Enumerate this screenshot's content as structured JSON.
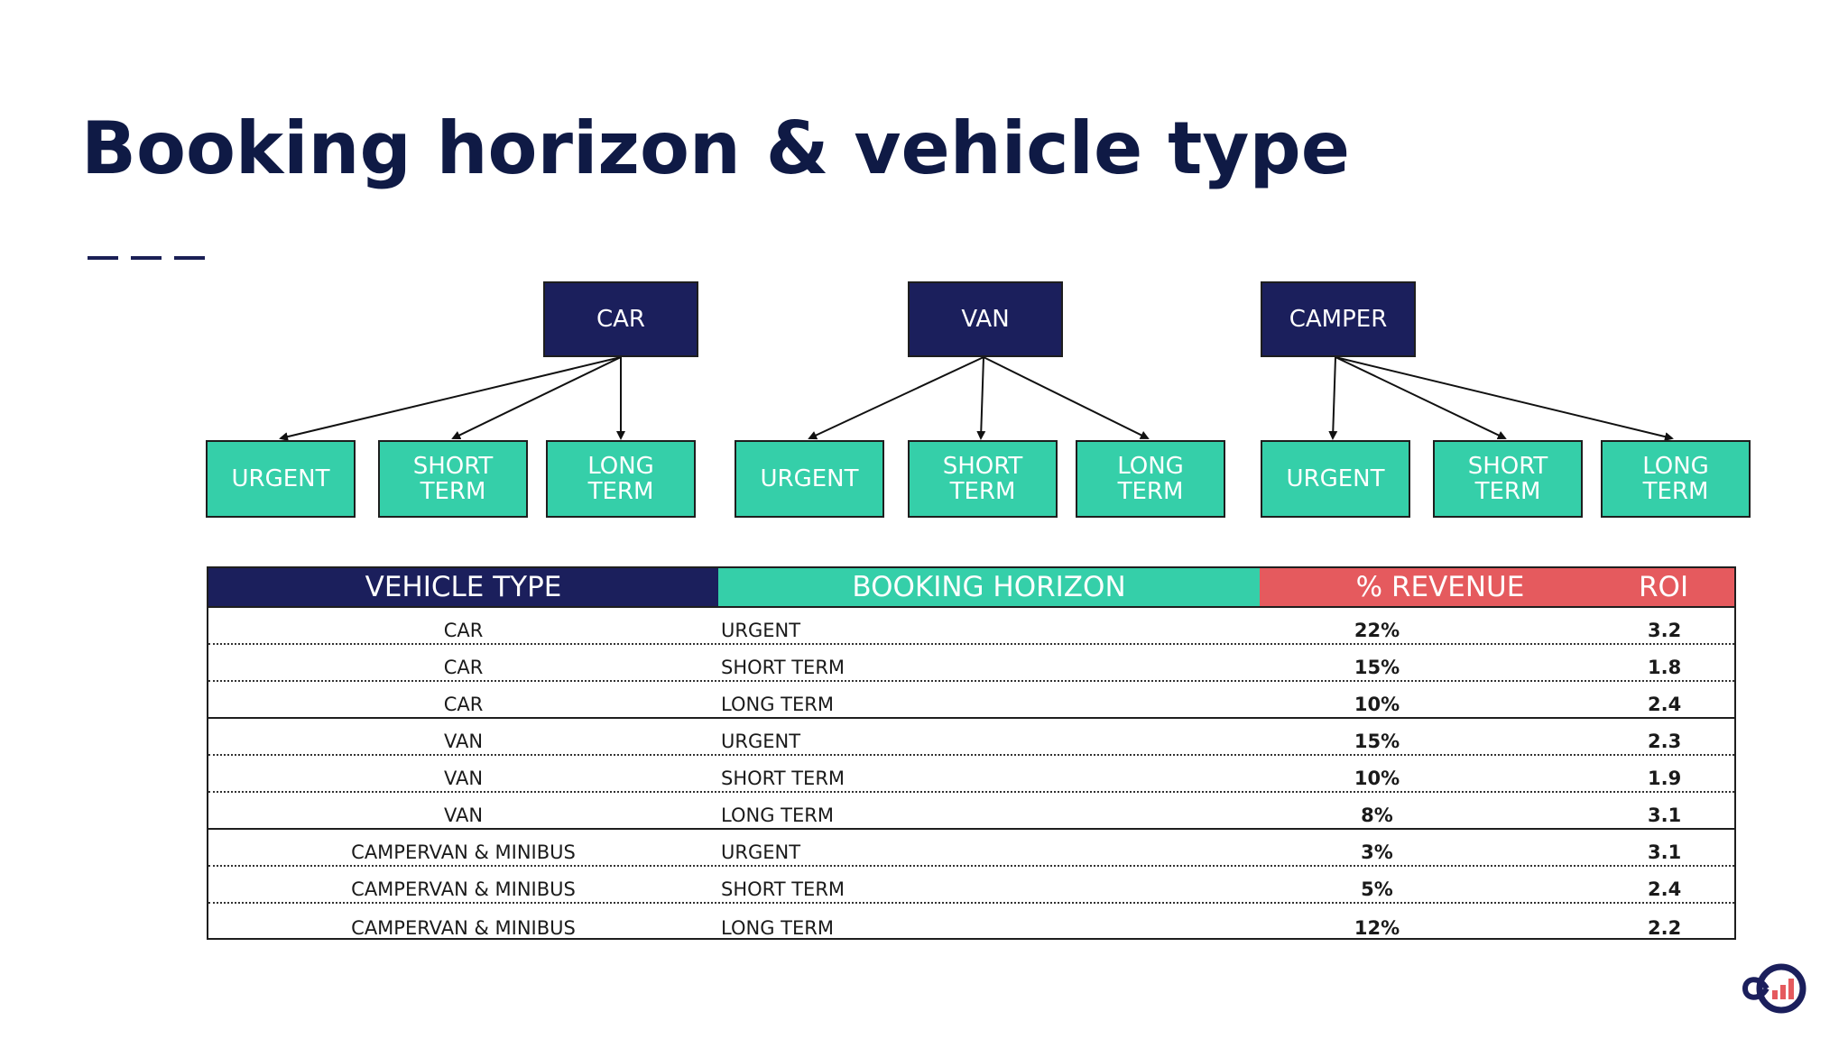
{
  "title": "Booking horizon & vehicle type",
  "tree": {
    "groups": [
      {
        "label": "CAR",
        "children": [
          "URGENT",
          "SHORT\nTERM",
          "LONG\nTERM"
        ]
      },
      {
        "label": "VAN",
        "children": [
          "URGENT",
          "SHORT\nTERM",
          "LONG\nTERM"
        ]
      },
      {
        "label": "CAMPER",
        "children": [
          "URGENT",
          "SHORT\nTERM",
          "LONG\nTERM"
        ]
      }
    ]
  },
  "table": {
    "headers": {
      "vehicle_type": "VEHICLE TYPE",
      "booking_horizon": "BOOKING HORIZON",
      "revenue": "% REVENUE",
      "roi": "ROI"
    },
    "rows": [
      {
        "vehicle": "CAR",
        "horizon": "URGENT",
        "revenue": "22%",
        "roi": "3.2"
      },
      {
        "vehicle": "CAR",
        "horizon": "SHORT TERM",
        "revenue": "15%",
        "roi": "1.8"
      },
      {
        "vehicle": "CAR",
        "horizon": "LONG TERM",
        "revenue": "10%",
        "roi": "2.4"
      },
      {
        "vehicle": "VAN",
        "horizon": "URGENT",
        "revenue": "15%",
        "roi": "2.3"
      },
      {
        "vehicle": "VAN",
        "horizon": "SHORT TERM",
        "revenue": "10%",
        "roi": "1.9"
      },
      {
        "vehicle": "VAN",
        "horizon": "LONG TERM",
        "revenue": "8%",
        "roi": "3.1"
      },
      {
        "vehicle": "CAMPERVAN & MINIBUS",
        "horizon": "URGENT",
        "revenue": "3%",
        "roi": "3.1"
      },
      {
        "vehicle": "CAMPERVAN & MINIBUS",
        "horizon": "SHORT TERM",
        "revenue": "5%",
        "roi": "2.4"
      },
      {
        "vehicle": "CAMPERVAN & MINIBUS",
        "horizon": "LONG TERM",
        "revenue": "12%",
        "roi": "2.2"
      }
    ]
  },
  "colors": {
    "navy": "#1b1f5c",
    "teal": "#35cfa9",
    "red": "#e55a5e",
    "title": "#0f1a45"
  },
  "logo": {
    "icon": "brand-logo-icon"
  }
}
